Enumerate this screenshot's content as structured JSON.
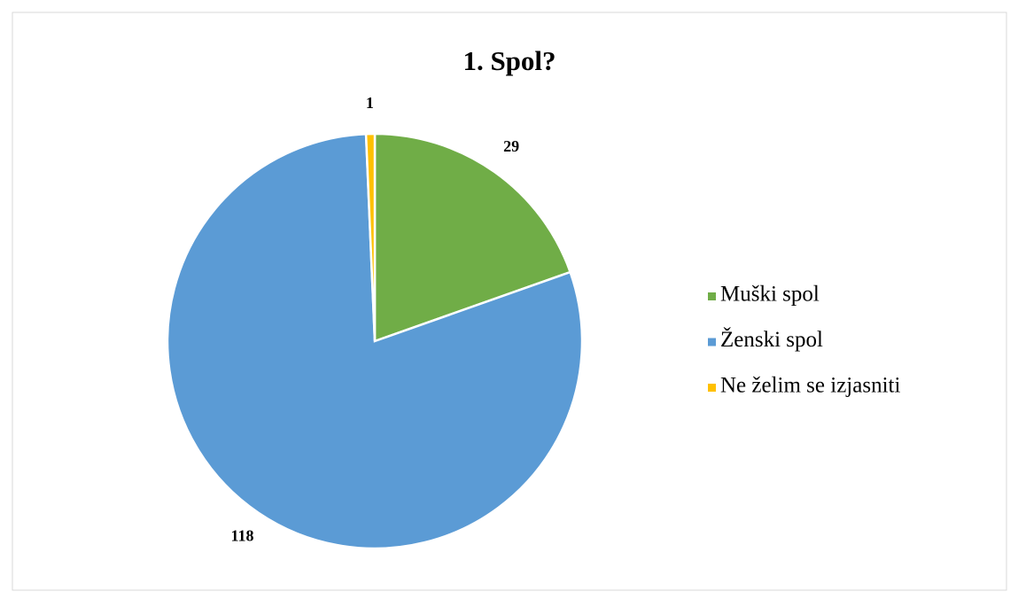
{
  "chart_data": {
    "type": "pie",
    "title": "1. Spol?",
    "categories": [
      "Muški spol",
      "Ženski spol",
      "Ne želim se izjasniti"
    ],
    "values": [
      29,
      118,
      1
    ],
    "colors": [
      "#70ad47",
      "#5b9bd5",
      "#ffc000"
    ],
    "legend": "right"
  }
}
